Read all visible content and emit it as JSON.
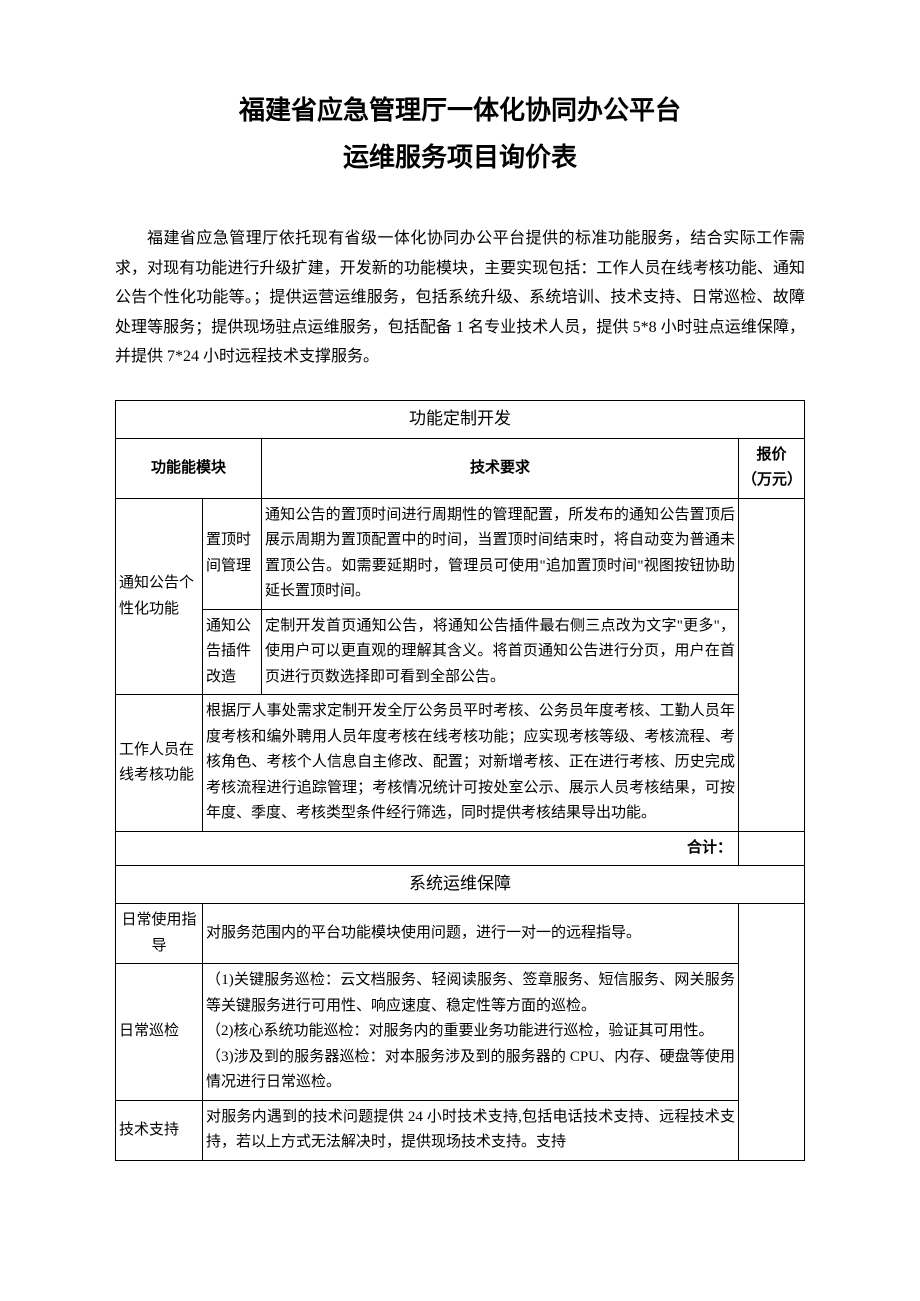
{
  "title_line1": "福建省应急管理厅一体化协同办公平台",
  "title_line2": "运维服务项目询价表",
  "intro": "福建省应急管理厅依托现有省级一体化协同办公平台提供的标准功能服务，结合实际工作需求，对现有功能进行升级扩建，开发新的功能模块，主要实现包括：工作人员在线考核功能、通知公告个性化功能等。；提供运营运维服务，包括系统升级、系统培训、技术支持、日常巡检、故障处理等服务；提供现场驻点运维服务，包括配备 1 名专业技术人员，提供 5*8 小时驻点运维保障，并提供 7*24 小时远程技术支撑服务。",
  "section1_title": "功能定制开发",
  "col_module": "功能能模块",
  "col_req": "技术要求",
  "col_price": "报价（万元）",
  "row1_module": "通知公告个性化功能",
  "row1_sub1": "置顶时间管理",
  "row1_desc1": "通知公告的置顶时间进行周期性的管理配置，所发布的通知公告置顶后展示周期为置顶配置中的时间，当置顶时间结束时，将自动变为普通未置顶公告。如需要延期时，管理员可使用\"追加置顶时间\"视图按钮协助延长置顶时间。",
  "row1_sub2": "通知公告插件改造",
  "row1_desc2": "定制开发首页通知公告，将通知公告插件最右侧三点改为文字\"更多\"，使用户可以更直观的理解其含义。将首页通知公告进行分页，用户在首页进行页数选择即可看到全部公告。",
  "row2_module": "工作人员在线考核功能",
  "row2_desc": "根据厅人事处需求定制开发全厅公务员平时考核、公务员年度考核、工勤人员年度考核和编外聘用人员年度考核在线考核功能；应实现考核等级、考核流程、考核角色、考核个人信息自主修改、配置；对新增考核、正在进行考核、历史完成考核流程进行追踪管理；考核情况统计可按处室公示、展示人员考核结果，可按年度、季度、考核类型条件经行筛选，同时提供考核结果导出功能。",
  "total_label": "合计：",
  "section2_title": "系统运维保障",
  "ops_row1_module": "日常使用指导",
  "ops_row1_desc": "对服务范围内的平台功能模块使用问题，进行一对一的远程指导。",
  "ops_row2_module": "日常巡检",
  "ops_row2_desc": "（1)关键服务巡检：云文档服务、轻阅读服务、签章服务、短信服务、网关服务等关键服务进行可用性、响应速度、稳定性等方面的巡检。\n（2)核心系统功能巡检：对服务内的重要业务功能进行巡检，验证其可用性。\n（3)涉及到的服务器巡检：对本服务涉及到的服务器的 CPU、内存、硬盘等使用情况进行日常巡检。",
  "ops_row3_module": "技术支持",
  "ops_row3_desc": "对服务内遇到的技术问题提供 24 小时技术支持,包括电话技术支持、远程技术支持，若以上方式无法解决时，提供现场技术支持。支持",
  "colors": {
    "text": "#000000",
    "background": "#ffffff",
    "border": "#000000"
  },
  "fonts": {
    "title_family": "SimHei",
    "body_family": "SimSun",
    "title_size_pt": 20,
    "body_size_pt": 12,
    "table_size_pt": 11
  }
}
